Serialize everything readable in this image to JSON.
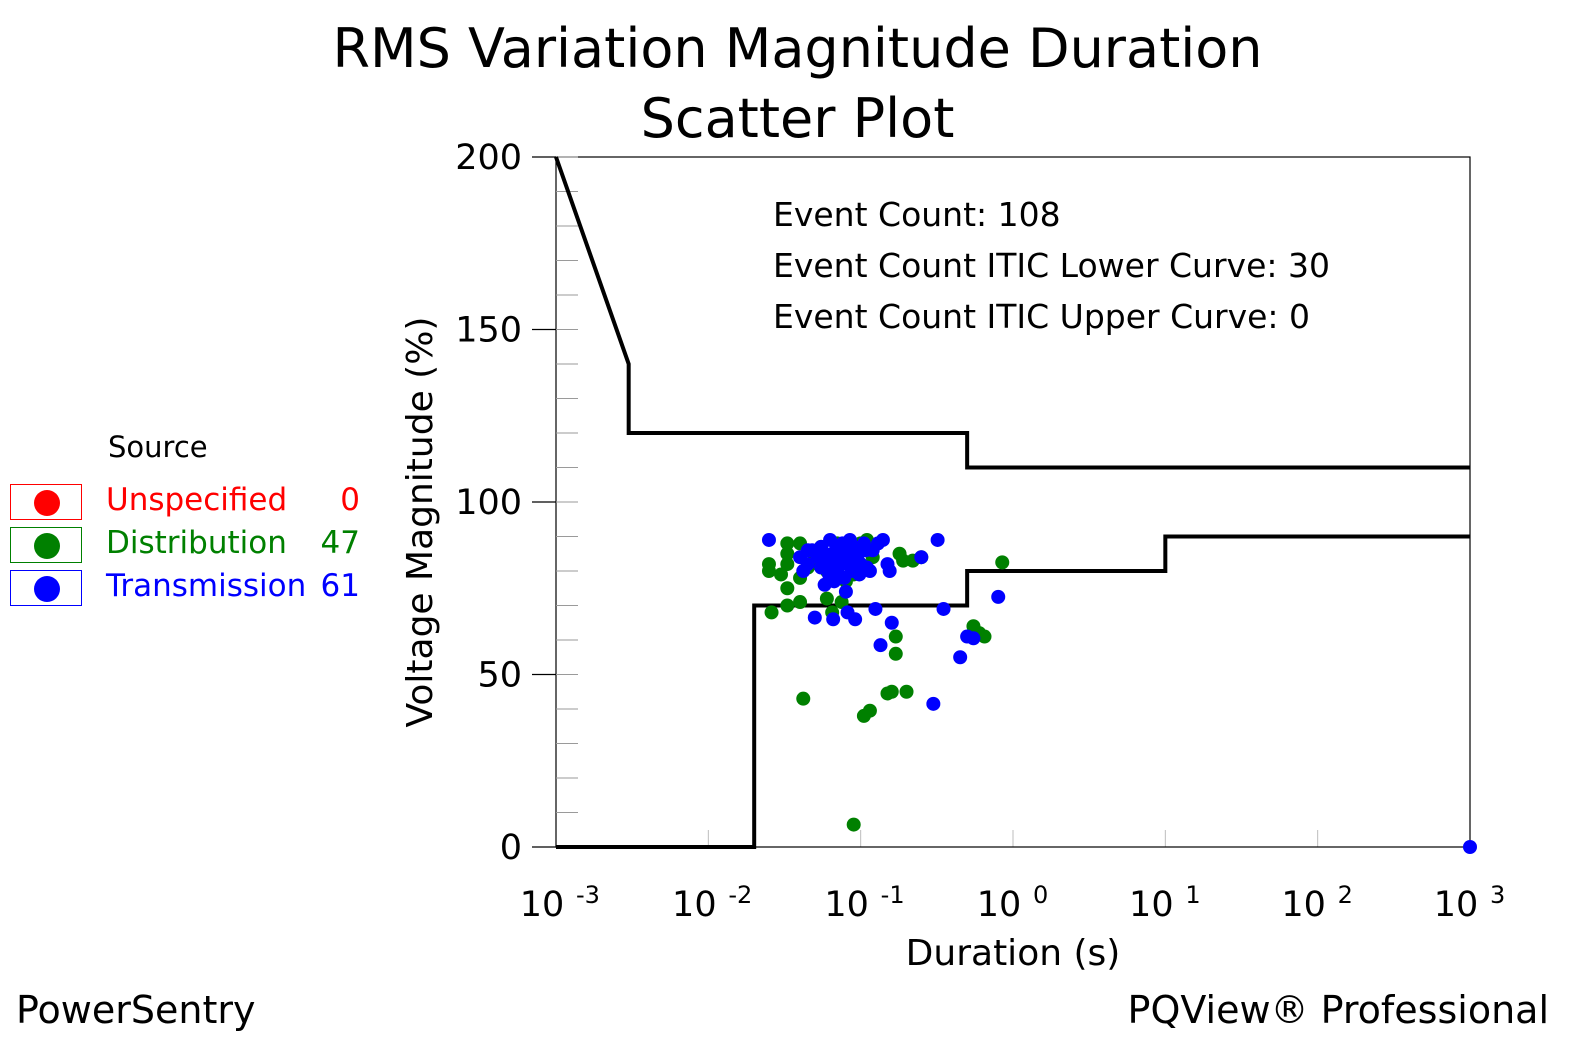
{
  "title_line1": "RMS Variation Magnitude Duration",
  "title_line2": "Scatter Plot",
  "legend": {
    "title": "Source",
    "items": [
      {
        "label": "Unspecified",
        "count": "0",
        "color": "#ff0000"
      },
      {
        "label": "Distribution",
        "count": "47",
        "color": "#008000"
      },
      {
        "label": "Transmission",
        "count": "61",
        "color": "#0000ff"
      }
    ]
  },
  "footer_left": "PowerSentry",
  "footer_right": "PQView® Professional",
  "chart_data": {
    "type": "scatter",
    "xlabel": "Duration (s)",
    "ylabel": "Voltage Magnitude (%)",
    "xscale": "log",
    "xlim": [
      0.001,
      1000
    ],
    "ylim": [
      0,
      200
    ],
    "x_ticks": [
      {
        "base": "10",
        "exp": "-3",
        "value": 0.001
      },
      {
        "base": "10",
        "exp": "-2",
        "value": 0.01
      },
      {
        "base": "10",
        "exp": "-1",
        "value": 0.1
      },
      {
        "base": "10",
        "exp": "0",
        "value": 1
      },
      {
        "base": "10",
        "exp": "1",
        "value": 10
      },
      {
        "base": "10",
        "exp": "2",
        "value": 100
      },
      {
        "base": "10",
        "exp": "3",
        "value": 1000
      }
    ],
    "y_ticks": [
      "0",
      "50",
      "100",
      "150",
      "200"
    ],
    "annotations": [
      "Event Count: 108",
      "Event Count ITIC Lower Curve: 30",
      "Event Count ITIC Upper Curve: 0"
    ],
    "itic_upper_curve": [
      [
        0.001,
        200
      ],
      [
        0.003,
        140
      ],
      [
        0.003,
        120
      ],
      [
        0.5,
        120
      ],
      [
        0.5,
        110
      ],
      [
        1000,
        110
      ]
    ],
    "itic_lower_curve": [
      [
        0.001,
        0
      ],
      [
        0.02,
        0
      ],
      [
        0.02,
        70
      ],
      [
        0.5,
        70
      ],
      [
        0.5,
        80
      ],
      [
        10,
        80
      ],
      [
        10,
        90
      ],
      [
        1000,
        90
      ]
    ],
    "series": [
      {
        "name": "Distribution",
        "color": "#008000",
        "points": [
          [
            0.025,
            82
          ],
          [
            0.025,
            80
          ],
          [
            0.026,
            68
          ],
          [
            0.033,
            88
          ],
          [
            0.033,
            85
          ],
          [
            0.033,
            82
          ],
          [
            0.033,
            75
          ],
          [
            0.033,
            70
          ],
          [
            0.04,
            88
          ],
          [
            0.04,
            78
          ],
          [
            0.04,
            71
          ],
          [
            0.042,
            43
          ],
          [
            0.05,
            84
          ],
          [
            0.055,
            82
          ],
          [
            0.06,
            80
          ],
          [
            0.06,
            72
          ],
          [
            0.065,
            68
          ],
          [
            0.07,
            88
          ],
          [
            0.075,
            86
          ],
          [
            0.08,
            77
          ],
          [
            0.085,
            83
          ],
          [
            0.09,
            6.5
          ],
          [
            0.095,
            85
          ],
          [
            0.1,
            88
          ],
          [
            0.1,
            82
          ],
          [
            0.105,
            38
          ],
          [
            0.11,
            89
          ],
          [
            0.115,
            39.5
          ],
          [
            0.15,
            44.5
          ],
          [
            0.16,
            45
          ],
          [
            0.17,
            61
          ],
          [
            0.17,
            56
          ],
          [
            0.18,
            85
          ],
          [
            0.2,
            45
          ],
          [
            0.22,
            83
          ],
          [
            0.25,
            84
          ],
          [
            0.55,
            64
          ],
          [
            0.6,
            62
          ],
          [
            0.65,
            61
          ],
          [
            0.85,
            82.5
          ],
          [
            0.03,
            79
          ],
          [
            0.045,
            81
          ],
          [
            0.055,
            87
          ],
          [
            0.075,
            71
          ],
          [
            0.09,
            79
          ],
          [
            0.12,
            84
          ],
          [
            0.19,
            83
          ]
        ]
      },
      {
        "name": "Transmission",
        "color": "#0000ff",
        "points": [
          [
            0.025,
            89
          ],
          [
            0.04,
            84
          ],
          [
            0.042,
            80
          ],
          [
            0.045,
            82
          ],
          [
            0.048,
            86
          ],
          [
            0.05,
            66.5
          ],
          [
            0.052,
            84
          ],
          [
            0.055,
            81
          ],
          [
            0.055,
            87
          ],
          [
            0.058,
            76
          ],
          [
            0.06,
            83
          ],
          [
            0.062,
            79
          ],
          [
            0.063,
            89
          ],
          [
            0.065,
            85
          ],
          [
            0.066,
            66
          ],
          [
            0.068,
            82
          ],
          [
            0.07,
            80
          ],
          [
            0.07,
            87
          ],
          [
            0.072,
            84
          ],
          [
            0.075,
            82
          ],
          [
            0.076,
            88
          ],
          [
            0.078,
            78
          ],
          [
            0.08,
            86
          ],
          [
            0.08,
            74
          ],
          [
            0.082,
            68
          ],
          [
            0.083,
            83
          ],
          [
            0.085,
            89
          ],
          [
            0.087,
            80
          ],
          [
            0.09,
            87
          ],
          [
            0.092,
            66
          ],
          [
            0.095,
            84
          ],
          [
            0.1,
            82
          ],
          [
            0.105,
            88
          ],
          [
            0.11,
            81
          ],
          [
            0.115,
            80
          ],
          [
            0.12,
            86
          ],
          [
            0.125,
            69
          ],
          [
            0.13,
            88
          ],
          [
            0.135,
            58.5
          ],
          [
            0.14,
            89
          ],
          [
            0.15,
            82
          ],
          [
            0.155,
            80
          ],
          [
            0.16,
            65
          ],
          [
            0.25,
            84
          ],
          [
            0.3,
            41.5
          ],
          [
            0.32,
            89
          ],
          [
            0.35,
            69
          ],
          [
            0.45,
            55
          ],
          [
            0.5,
            61
          ],
          [
            0.55,
            60.5
          ],
          [
            0.8,
            72.5
          ],
          [
            1000,
            0
          ],
          [
            0.058,
            85
          ],
          [
            0.067,
            77
          ],
          [
            0.073,
            84
          ],
          [
            0.088,
            86
          ],
          [
            0.098,
            79
          ],
          [
            0.108,
            86
          ],
          [
            0.062,
            81
          ],
          [
            0.078,
            83
          ],
          [
            0.045,
            86
          ]
        ]
      }
    ]
  }
}
